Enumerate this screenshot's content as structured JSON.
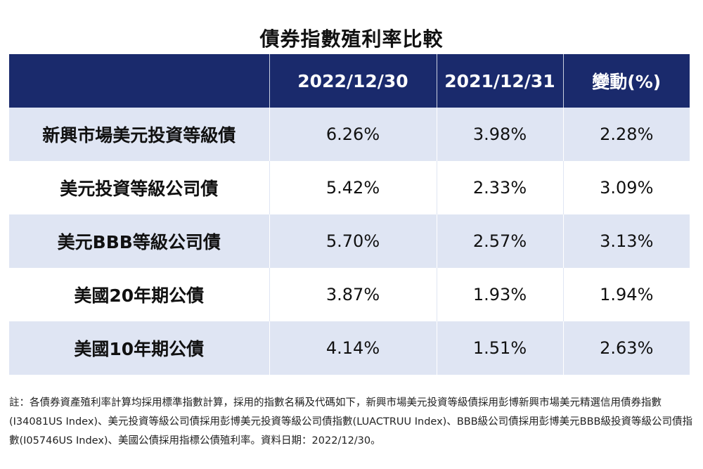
{
  "title": "債券指數殖利率比較",
  "table": {
    "headers": [
      "",
      "2022/12/30",
      "2021/12/31",
      "變動(%)"
    ],
    "rows": [
      [
        "新興市場美元投資等級債",
        "6.26%",
        "3.98%",
        "2.28%"
      ],
      [
        "美元投資等級公司債",
        "5.42%",
        "2.33%",
        "3.09%"
      ],
      [
        "美元BBB等級公司債",
        "5.70%",
        "2.57%",
        "3.13%"
      ],
      [
        "美國20年期公債",
        "3.87%",
        "1.93%",
        "1.94%"
      ],
      [
        "美國10年期公債",
        "4.14%",
        "1.51%",
        "2.63%"
      ]
    ]
  },
  "note": "註：各債券資產殖利率計算均採用標準指數計算，採用的指數名稱及代碼如下，新興市場美元投資等級債採用彭博新興市場美元精選信用債券指數(I34081US Index)、美元投資等級公司債採用彭博美元投資等級公司債指數(LUACTRUU Index)、BBB級公司債採用彭博美元BBB級投資等級公司債指數(I05746US Index)、美國公債採用指標公債殖利率。資料日期：2022/12/30。",
  "colors": {
    "header_bg": "#1a2a6c",
    "stripe_bg": "#dfe5f3"
  }
}
